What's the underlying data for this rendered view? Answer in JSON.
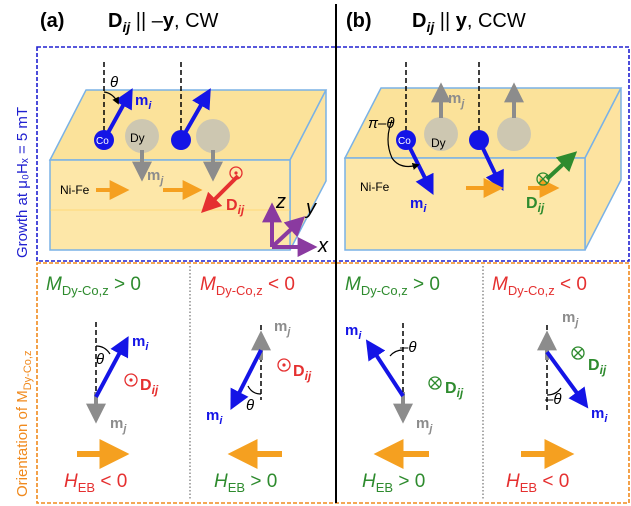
{
  "panels": {
    "a": {
      "label": "(a)",
      "heading_main": "D",
      "heading_sub": "ij",
      "heading_rel": " || –",
      "heading_dir": "y",
      "heading_sense": ", CW"
    },
    "b": {
      "label": "(b)",
      "heading_main": "D",
      "heading_sub": "ij",
      "heading_rel": " || ",
      "heading_dir": "y",
      "heading_sense": ", CCW"
    }
  },
  "side_labels": {
    "growth": "Growth at μ₀Hₓ = 5 mT",
    "orientation": "Orientation of M",
    "orientation_sub": "Dy-Co,z"
  },
  "film_labels": {
    "atom_co": "Co",
    "atom_dy": "Dy",
    "layer_nife": "Ni-Fe",
    "m_i": "m",
    "m_i_sub": "i",
    "m_j": "m",
    "m_j_sub": "j",
    "d": "D",
    "d_sub": "ij",
    "angle_theta": "θ",
    "angle_pi_theta": "π–θ"
  },
  "axes": {
    "z": "z",
    "y": "y",
    "x": "x"
  },
  "bottom_cells": [
    {
      "m_label": "M",
      "m_sub": "Dy-Co,z",
      "sign": " > 0",
      "sign_color": "#2e8b2e",
      "h_label": "H",
      "h_sub": "EB",
      "h_sign": " < 0",
      "h_color": "#e53030",
      "angle": "θ",
      "d_color": "#e53030"
    },
    {
      "m_label": "M",
      "m_sub": "Dy-Co,z",
      "sign": " < 0",
      "sign_color": "#e53030",
      "h_label": "H",
      "h_sub": "EB",
      "h_sign": " > 0",
      "h_color": "#2e8b2e",
      "angle": "θ",
      "d_color": "#e53030"
    },
    {
      "m_label": "M",
      "m_sub": "Dy-Co,z",
      "sign": " > 0",
      "sign_color": "#2e8b2e",
      "h_label": "H",
      "h_sub": "EB",
      "h_sign": " > 0",
      "h_color": "#2e8b2e",
      "angle": "–θ",
      "d_color": "#2e8b2e"
    },
    {
      "m_label": "M",
      "m_sub": "Dy-Co,z",
      "sign": " < 0",
      "sign_color": "#e53030",
      "h_label": "H",
      "h_sub": "EB",
      "h_sign": " < 0",
      "h_color": "#e53030",
      "angle": "–θ",
      "d_color": "#2e8b2e"
    }
  ],
  "colors": {
    "blue": "#1414e6",
    "gray": "#8c8c8c",
    "orange": "#f5a020",
    "red": "#e53030",
    "green": "#2e8b2e",
    "purple": "#8a3aa0",
    "film_top": "#fbe29a",
    "film_face": "#fde7a8",
    "film_edge": "#7ab2e6"
  }
}
